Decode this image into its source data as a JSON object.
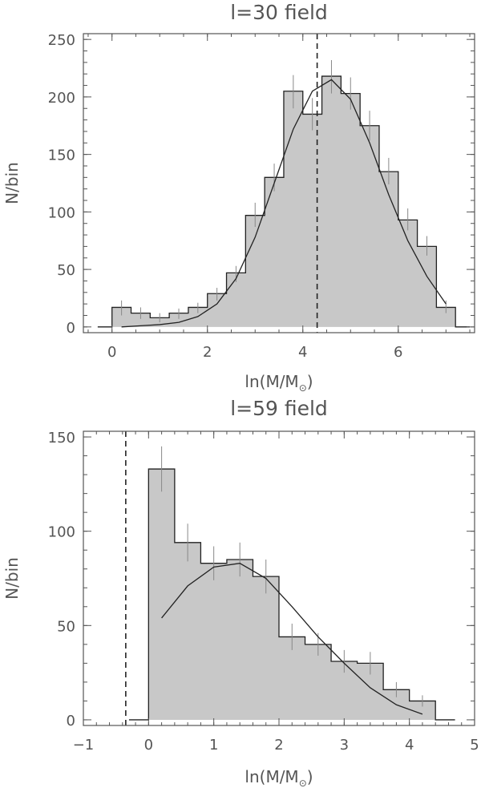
{
  "chart_data": [
    {
      "type": "histogram",
      "title": "l=30 field",
      "xlabel": "ln(M/M",
      "xlabel_subscript": "⊙",
      "xlabel_close": ")",
      "ylabel": "N/bin",
      "xlim": [
        -0.6,
        7.6
      ],
      "ylim": [
        -5,
        255
      ],
      "xticks": [
        0,
        2,
        4,
        6
      ],
      "yticks": [
        0,
        50,
        100,
        150,
        200,
        250
      ],
      "grid": false,
      "fill_color": "#c8c8c8",
      "bins": {
        "edges": [
          0.0,
          0.4,
          0.8,
          1.2,
          1.6,
          2.0,
          2.4,
          2.8,
          3.2,
          3.6,
          4.0,
          4.4,
          4.8,
          5.2,
          5.6,
          6.0,
          6.4,
          6.8,
          7.2
        ],
        "counts": [
          17,
          12,
          8,
          12,
          17,
          29,
          47,
          97,
          130,
          205,
          185,
          218,
          203,
          175,
          135,
          93,
          70,
          17
        ]
      },
      "error_bars": [
        {
          "x": 0.2,
          "low": 10,
          "high": 23
        },
        {
          "x": 0.6,
          "low": 7,
          "high": 17
        },
        {
          "x": 1.0,
          "low": 4,
          "high": 12
        },
        {
          "x": 1.4,
          "low": 7,
          "high": 16
        },
        {
          "x": 1.8,
          "low": 12,
          "high": 21
        },
        {
          "x": 2.2,
          "low": 23,
          "high": 34
        },
        {
          "x": 2.6,
          "low": 39,
          "high": 53
        },
        {
          "x": 3.0,
          "low": 87,
          "high": 108
        },
        {
          "x": 3.4,
          "low": 118,
          "high": 142
        },
        {
          "x": 3.8,
          "low": 190,
          "high": 219
        },
        {
          "x": 4.2,
          "low": 171,
          "high": 199
        },
        {
          "x": 4.6,
          "low": 203,
          "high": 232
        },
        {
          "x": 5.0,
          "low": 189,
          "high": 217
        },
        {
          "x": 5.4,
          "low": 162,
          "high": 188
        },
        {
          "x": 5.8,
          "low": 124,
          "high": 147
        },
        {
          "x": 6.2,
          "low": 84,
          "high": 103
        },
        {
          "x": 6.6,
          "low": 62,
          "high": 79
        },
        {
          "x": 7.0,
          "low": 12,
          "high": 23
        }
      ],
      "model_curve": {
        "x": [
          0.2,
          0.6,
          1.0,
          1.4,
          1.8,
          2.2,
          2.6,
          3.0,
          3.4,
          3.8,
          4.2,
          4.6,
          5.0,
          5.4,
          5.8,
          6.2,
          6.6,
          7.0
        ],
        "y": [
          0,
          1,
          2,
          4,
          9,
          20,
          42,
          78,
          125,
          172,
          205,
          215,
          198,
          160,
          115,
          75,
          44,
          20
        ]
      },
      "vline": 4.3
    },
    {
      "type": "histogram",
      "title": "l=59 field",
      "xlabel": "ln(M/M",
      "xlabel_subscript": "⊙",
      "xlabel_close": ")",
      "ylabel": "N/bin",
      "xlim": [
        -1,
        5
      ],
      "ylim": [
        -3,
        153
      ],
      "xticks": [
        -1,
        0,
        1,
        2,
        3,
        4,
        5
      ],
      "yticks": [
        0,
        50,
        100,
        150
      ],
      "grid": false,
      "fill_color": "#c8c8c8",
      "bins": {
        "edges": [
          0.0,
          0.4,
          0.8,
          1.2,
          1.6,
          2.0,
          2.4,
          2.8,
          3.2,
          3.6,
          4.0,
          4.4
        ],
        "counts": [
          133,
          94,
          83,
          85,
          76,
          44,
          40,
          31,
          30,
          16,
          10
        ]
      },
      "error_bars": [
        {
          "x": 0.2,
          "low": 121,
          "high": 145
        },
        {
          "x": 0.6,
          "low": 84,
          "high": 104
        },
        {
          "x": 1.0,
          "low": 74,
          "high": 92
        },
        {
          "x": 1.4,
          "low": 76,
          "high": 94
        },
        {
          "x": 1.8,
          "low": 67,
          "high": 85
        },
        {
          "x": 2.2,
          "low": 37,
          "high": 51
        },
        {
          "x": 2.6,
          "low": 34,
          "high": 46
        },
        {
          "x": 3.0,
          "low": 25,
          "high": 37
        },
        {
          "x": 3.4,
          "low": 24,
          "high": 36
        },
        {
          "x": 3.8,
          "low": 12,
          "high": 20
        },
        {
          "x": 4.2,
          "low": 7,
          "high": 13
        }
      ],
      "model_curve": {
        "x": [
          0.2,
          0.6,
          1.0,
          1.4,
          1.8,
          2.2,
          2.6,
          3.0,
          3.4,
          3.8,
          4.2
        ],
        "y": [
          54,
          71,
          81,
          83,
          75,
          60,
          44,
          30,
          17,
          8,
          3
        ]
      },
      "vline": -0.35
    }
  ]
}
